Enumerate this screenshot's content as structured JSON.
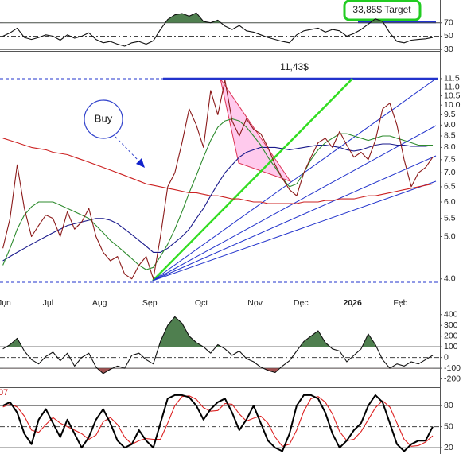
{
  "chart_data": [
    {
      "type": "line",
      "name": "rsi",
      "x": [
        0,
        1,
        2,
        3,
        4,
        5,
        6,
        7,
        8,
        9,
        10,
        11,
        12,
        13,
        14,
        15,
        16,
        17,
        18,
        19,
        20,
        21,
        22,
        23,
        24,
        25,
        26,
        27,
        28,
        29,
        30,
        31,
        32,
        33,
        34,
        35,
        36,
        37,
        38,
        39,
        40,
        41,
        42,
        43,
        44,
        45,
        46,
        47,
        48,
        49,
        50,
        51,
        52,
        53,
        54,
        55,
        56,
        57,
        58,
        59,
        60
      ],
      "xlim": [
        -0.4,
        61.0
      ],
      "ylim": [
        29,
        102
      ],
      "yticks": [
        70,
        50,
        30
      ],
      "reference_lines": [
        70,
        50,
        30
      ],
      "overbought_fill": "#4f7f4f",
      "annotation": "33,85$ Target",
      "series": [
        {
          "color": "#111111",
          "values": [
            50,
            55,
            62,
            48,
            45,
            48,
            52,
            50,
            44,
            52,
            47,
            50,
            55,
            45,
            40,
            42,
            38,
            35,
            40,
            42,
            38,
            43,
            60,
            75,
            82,
            84,
            80,
            85,
            72,
            70,
            74,
            65,
            60,
            66,
            58,
            56,
            52,
            48,
            45,
            42,
            40,
            52,
            58,
            60,
            62,
            56,
            60,
            58,
            50,
            54,
            60,
            68,
            76,
            72,
            55,
            42,
            40,
            44,
            45,
            46,
            48
          ]
        }
      ]
    },
    {
      "type": "line",
      "name": "price",
      "log": true,
      "x": [
        0,
        1,
        2,
        3,
        4,
        5,
        6,
        7,
        8,
        9,
        10,
        11,
        12,
        13,
        14,
        15,
        16,
        17,
        18,
        19,
        20,
        21,
        22,
        23,
        24,
        25,
        26,
        27,
        28,
        29,
        30,
        31,
        32,
        33,
        34,
        35,
        36,
        37,
        38,
        39,
        40,
        41,
        42,
        43,
        44,
        45,
        46,
        47,
        48,
        49,
        50,
        51,
        52,
        53,
        54,
        55,
        56,
        57,
        58,
        59,
        60
      ],
      "xlim": [
        -0.4,
        61.0
      ],
      "ylim": [
        3.45,
        13.2
      ],
      "yticks": [
        11.5,
        {
          "value": 11,
          "label": "11.0"
        },
        10.5,
        {
          "value": 10,
          "label": "10.0"
        },
        9.5,
        {
          "value": 9,
          "label": "9.0"
        },
        8.5,
        {
          "value": 8,
          "label": "8.0"
        },
        7.5,
        {
          "value": 7,
          "label": "7.0"
        },
        6.5,
        {
          "value": 6,
          "label": "6.0"
        },
        5.5,
        {
          "value": 5,
          "label": "5.0"
        },
        {
          "value": 4,
          "label": "4.0"
        }
      ],
      "xticks": [
        {
          "value": 0.2,
          "label": "Jun"
        },
        {
          "value": 6.3,
          "label": "Jul"
        },
        {
          "value": 13.5,
          "label": "Aug"
        },
        {
          "value": 20.5,
          "label": "Sep"
        },
        {
          "value": 27.7,
          "label": "Oct"
        },
        {
          "value": 35.2,
          "label": "Nov"
        },
        {
          "value": 41.6,
          "label": "Dec"
        },
        {
          "value": 48.8,
          "label": "2026"
        },
        {
          "value": 55.5,
          "label": "Feb"
        }
      ],
      "annotations": [
        "11,43$",
        "Buy"
      ],
      "series": [
        {
          "color": "#cc2222",
          "values": [
            8.4,
            8.3,
            8.2,
            8.1,
            8.0,
            7.95,
            7.9,
            7.8,
            7.75,
            7.7,
            7.6,
            7.5,
            7.4,
            7.3,
            7.2,
            7.1,
            7.0,
            6.9,
            6.8,
            6.7,
            6.6,
            6.55,
            6.5,
            6.45,
            6.4,
            6.35,
            6.3,
            6.3,
            6.25,
            6.2,
            6.2,
            6.15,
            6.1,
            6.1,
            6.05,
            6.0,
            6.0,
            5.95,
            5.95,
            5.95,
            5.95,
            5.95,
            6.0,
            6.0,
            6.0,
            6.05,
            6.05,
            6.1,
            6.1,
            6.1,
            6.15,
            6.2,
            6.2,
            6.25,
            6.3,
            6.35,
            6.4,
            6.45,
            6.5,
            6.55,
            6.6
          ]
        },
        {
          "color": "#1a1a8c",
          "values": [
            4.4,
            4.5,
            4.6,
            4.7,
            4.8,
            4.9,
            5.0,
            5.1,
            5.2,
            5.3,
            5.35,
            5.4,
            5.45,
            5.5,
            5.5,
            5.45,
            5.35,
            5.2,
            5.05,
            4.9,
            4.75,
            4.6,
            4.6,
            4.7,
            4.85,
            5.0,
            5.2,
            5.5,
            5.8,
            6.2,
            6.6,
            7.0,
            7.3,
            7.6,
            7.8,
            7.9,
            8.0,
            8.0,
            8.0,
            7.95,
            7.9,
            7.95,
            8.0,
            8.05,
            8.1,
            8.1,
            8.05,
            8.0,
            7.9,
            7.85,
            7.9,
            8.0,
            8.1,
            8.15,
            8.15,
            8.1,
            8.1,
            8.05,
            8.05,
            8.05,
            8.1
          ]
        },
        {
          "color": "#2e8b2e",
          "values": [
            4.3,
            4.7,
            5.2,
            5.6,
            5.85,
            6.0,
            6.0,
            6.0,
            5.9,
            5.8,
            5.7,
            5.6,
            5.5,
            5.3,
            5.1,
            4.9,
            4.75,
            4.6,
            4.45,
            4.3,
            4.2,
            4.25,
            4.5,
            4.8,
            5.2,
            5.7,
            6.3,
            6.9,
            7.6,
            8.3,
            8.9,
            9.2,
            9.3,
            9.2,
            8.9,
            8.5,
            8.1,
            7.6,
            7.2,
            6.8,
            6.5,
            6.6,
            7.0,
            7.5,
            7.9,
            8.2,
            8.4,
            8.6,
            8.6,
            8.5,
            8.4,
            8.3,
            8.4,
            8.5,
            8.5,
            8.4,
            8.3,
            8.2,
            8.1,
            8.1,
            8.1
          ]
        },
        {
          "color": "#8b1a1a",
          "values": [
            4.7,
            5.5,
            7.3,
            5.8,
            5.0,
            5.3,
            5.6,
            5.5,
            5.0,
            5.7,
            5.2,
            5.4,
            5.8,
            5.0,
            4.6,
            4.4,
            4.5,
            4.1,
            4.0,
            4.3,
            4.5,
            4.0,
            5.0,
            6.5,
            7.0,
            8.2,
            9.8,
            9.0,
            8.0,
            10.8,
            9.5,
            11.4,
            9.2,
            8.5,
            9.3,
            8.8,
            8.6,
            8.0,
            7.3,
            6.8,
            6.4,
            6.2,
            7.0,
            7.6,
            8.2,
            8.4,
            8.0,
            8.7,
            8.1,
            7.6,
            7.8,
            7.5,
            8.3,
            9.8,
            10.1,
            9.0,
            7.5,
            6.5,
            7.0,
            7.2,
            7.6
          ]
        }
      ]
    },
    {
      "type": "line",
      "name": "cci",
      "x": [
        0,
        1,
        2,
        3,
        4,
        5,
        6,
        7,
        8,
        9,
        10,
        11,
        12,
        13,
        14,
        15,
        16,
        17,
        18,
        19,
        20,
        21,
        22,
        23,
        24,
        25,
        26,
        27,
        28,
        29,
        30,
        31,
        32,
        33,
        34,
        35,
        36,
        37,
        38,
        39,
        40,
        41,
        42,
        43,
        44,
        45,
        46,
        47,
        48,
        49,
        50,
        51,
        52,
        53,
        54,
        55,
        56,
        57,
        58,
        59,
        60
      ],
      "xlim": [
        -0.4,
        61.0
      ],
      "ylim": [
        -270,
        450
      ],
      "yticks": [
        400,
        300,
        200,
        100,
        0,
        -100,
        -200
      ],
      "reference_lines": [
        100,
        0,
        -100
      ],
      "overbought_fill": "#4f7f4f",
      "oversold_fill": "#a05050",
      "series": [
        {
          "color": "#111111",
          "values": [
            80,
            120,
            180,
            60,
            -20,
            -60,
            10,
            50,
            -30,
            40,
            -80,
            0,
            40,
            -90,
            -150,
            -110,
            -80,
            -100,
            20,
            40,
            -20,
            -60,
            150,
            300,
            380,
            320,
            200,
            140,
            100,
            40,
            120,
            80,
            20,
            60,
            -10,
            -40,
            -90,
            -120,
            -140,
            -80,
            -30,
            60,
            150,
            200,
            250,
            140,
            80,
            60,
            -40,
            20,
            80,
            220,
            120,
            -20,
            -100,
            -60,
            -80,
            -40,
            -60,
            -20,
            20
          ]
        }
      ]
    },
    {
      "type": "line",
      "name": "stochastic",
      "corner_label": "07",
      "x": [
        0,
        1,
        2,
        3,
        4,
        5,
        6,
        7,
        8,
        9,
        10,
        11,
        12,
        13,
        14,
        15,
        16,
        17,
        18,
        19,
        20,
        21,
        22,
        23,
        24,
        25,
        26,
        27,
        28,
        29,
        30,
        31,
        32,
        33,
        34,
        35,
        36,
        37,
        38,
        39,
        40,
        41,
        42,
        43,
        44,
        45,
        46,
        47,
        48,
        49,
        50,
        51,
        52,
        53,
        54,
        55,
        56,
        57,
        58,
        59,
        60
      ],
      "xlim": [
        -0.4,
        61.0
      ],
      "ylim": [
        11,
        104
      ],
      "yticks": [
        80,
        50,
        20
      ],
      "reference_lines": [
        80,
        50,
        20
      ],
      "series": [
        {
          "color": "#dd2222",
          "values": [
            78,
            82,
            78,
            65,
            45,
            42,
            53,
            63,
            55,
            50,
            45,
            40,
            32,
            38,
            57,
            63,
            53,
            35,
            25,
            30,
            33,
            32,
            32,
            55,
            80,
            93,
            94,
            89,
            77,
            72,
            73,
            83,
            82,
            68,
            58,
            62,
            65,
            55,
            35,
            22,
            25,
            45,
            72,
            90,
            93,
            85,
            68,
            43,
            30,
            32,
            43,
            60,
            77,
            87,
            78,
            55,
            32,
            22,
            23,
            28,
            37
          ]
        },
        {
          "color": "#000000",
          "values": [
            80,
            85,
            70,
            40,
            25,
            60,
            75,
            55,
            35,
            60,
            40,
            20,
            35,
            60,
            75,
            55,
            30,
            20,
            25,
            45,
            30,
            20,
            55,
            90,
            95,
            95,
            92,
            80,
            60,
            75,
            85,
            90,
            70,
            45,
            60,
            80,
            55,
            30,
            20,
            15,
            40,
            80,
            95,
            95,
            90,
            70,
            40,
            20,
            30,
            45,
            55,
            80,
            95,
            85,
            55,
            25,
            15,
            25,
            30,
            30,
            50
          ]
        }
      ]
    }
  ]
}
